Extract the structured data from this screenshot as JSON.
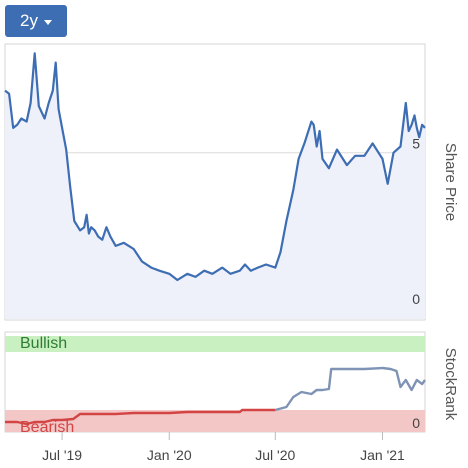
{
  "range_selector": {
    "label": "2y"
  },
  "chart_data": [
    {
      "type": "line",
      "title": "",
      "ylabel": "Share Price",
      "y_ticks": [
        {
          "value": 0,
          "label": "0"
        },
        {
          "value": 5,
          "label": "5"
        }
      ],
      "ylim": [
        0,
        8.5
      ],
      "grid": "horizontal",
      "series": [
        {
          "color": "#3d6eb3",
          "fill": "#eef0fa",
          "x": [
            "2019-03-25",
            "2019-04-01",
            "2019-04-08",
            "2019-04-15",
            "2019-04-22",
            "2019-05-01",
            "2019-05-08",
            "2019-05-15",
            "2019-05-22",
            "2019-06-01",
            "2019-06-08",
            "2019-06-15",
            "2019-06-20",
            "2019-06-25",
            "2019-07-01",
            "2019-07-08",
            "2019-07-15",
            "2019-07-22",
            "2019-08-01",
            "2019-08-08",
            "2019-08-12",
            "2019-08-16",
            "2019-08-20",
            "2019-08-26",
            "2019-09-01",
            "2019-09-08",
            "2019-09-15",
            "2019-09-22",
            "2019-10-01",
            "2019-10-15",
            "2019-11-01",
            "2019-11-15",
            "2019-12-01",
            "2019-12-15",
            "2020-01-01",
            "2020-01-15",
            "2020-02-01",
            "2020-02-15",
            "2020-03-01",
            "2020-03-15",
            "2020-04-01",
            "2020-04-15",
            "2020-05-01",
            "2020-05-10",
            "2020-05-20",
            "2020-06-01",
            "2020-06-15",
            "2020-07-01",
            "2020-07-10",
            "2020-07-20",
            "2020-08-01",
            "2020-08-10",
            "2020-08-20",
            "2020-09-01",
            "2020-09-05",
            "2020-09-10",
            "2020-09-15",
            "2020-09-20",
            "2020-10-01",
            "2020-10-15",
            "2020-11-01",
            "2020-11-15",
            "2020-12-01",
            "2020-12-15",
            "2021-01-01",
            "2021-01-10",
            "2021-01-20",
            "2021-02-01",
            "2021-02-10",
            "2021-02-15",
            "2021-02-20",
            "2021-02-25",
            "2021-03-01",
            "2021-03-05",
            "2021-03-10",
            "2021-03-15"
          ],
          "y": [
            7.0,
            6.9,
            5.8,
            5.9,
            6.1,
            6.0,
            6.6,
            8.2,
            6.5,
            6.1,
            6.6,
            7.0,
            7.9,
            6.4,
            5.8,
            5.1,
            3.9,
            2.8,
            2.5,
            2.6,
            3.0,
            2.4,
            2.6,
            2.5,
            2.3,
            2.2,
            2.6,
            2.3,
            2.0,
            2.1,
            1.9,
            1.5,
            1.3,
            1.2,
            1.1,
            0.9,
            1.1,
            1.0,
            1.2,
            1.1,
            1.3,
            1.1,
            1.2,
            1.4,
            1.2,
            1.3,
            1.4,
            1.3,
            1.8,
            2.8,
            3.8,
            4.8,
            5.3,
            6.0,
            5.9,
            5.2,
            5.7,
            4.8,
            4.5,
            5.1,
            4.6,
            4.9,
            4.9,
            5.3,
            4.8,
            4.0,
            5.0,
            5.2,
            6.6,
            5.7,
            5.9,
            6.2,
            5.8,
            5.5,
            5.9,
            5.8
          ]
        }
      ]
    },
    {
      "type": "line",
      "title": "",
      "ylabel": "StockRank",
      "y_ticks": [
        {
          "value": 0,
          "label": "0"
        }
      ],
      "ylim": [
        0,
        100
      ],
      "zones": [
        {
          "label": "Bullish",
          "from": 80,
          "to": 100,
          "fill": "#c8f0c0",
          "text_color": "#2e7d32"
        },
        {
          "label": "Bearish",
          "from": 0,
          "to": 20,
          "fill": "#f4c7c7",
          "text_color": "#d34545"
        }
      ],
      "x_ticks": [
        {
          "date": "2019-07-01",
          "label": "Jul '19"
        },
        {
          "date": "2020-01-01",
          "label": "Jan '20"
        },
        {
          "date": "2020-07-01",
          "label": "Jul '20"
        },
        {
          "date": "2021-01-01",
          "label": "Jan '21"
        }
      ],
      "series": [
        {
          "color": "#d34545",
          "x": [
            "2019-03-25",
            "2019-04-15",
            "2019-05-01",
            "2019-05-15",
            "2019-06-01",
            "2019-06-15",
            "2019-07-01",
            "2019-07-20",
            "2019-08-01",
            "2019-09-01",
            "2019-10-01",
            "2019-11-01",
            "2019-12-01",
            "2020-01-01",
            "2020-02-01",
            "2020-03-01",
            "2020-04-01",
            "2020-05-01",
            "2020-05-05",
            "2020-06-01",
            "2020-07-01"
          ],
          "y": [
            10,
            10,
            8,
            10,
            10,
            12,
            12,
            13,
            18,
            18,
            18,
            19,
            19,
            19,
            20,
            20,
            20,
            20,
            22,
            22,
            22
          ]
        },
        {
          "color": "#7f93b5",
          "x": [
            "2020-07-01",
            "2020-07-20",
            "2020-08-01",
            "2020-08-15",
            "2020-09-01",
            "2020-09-10",
            "2020-09-20",
            "2020-10-01",
            "2020-10-05",
            "2020-11-01",
            "2020-12-01",
            "2021-01-01",
            "2021-01-15",
            "2021-01-25",
            "2021-02-01",
            "2021-02-10",
            "2021-02-20",
            "2021-03-01",
            "2021-03-10",
            "2021-03-15"
          ],
          "y": [
            22,
            25,
            35,
            40,
            38,
            42,
            42,
            43,
            63,
            63,
            63,
            64,
            63,
            61,
            45,
            52,
            42,
            52,
            48,
            52
          ]
        }
      ]
    }
  ]
}
